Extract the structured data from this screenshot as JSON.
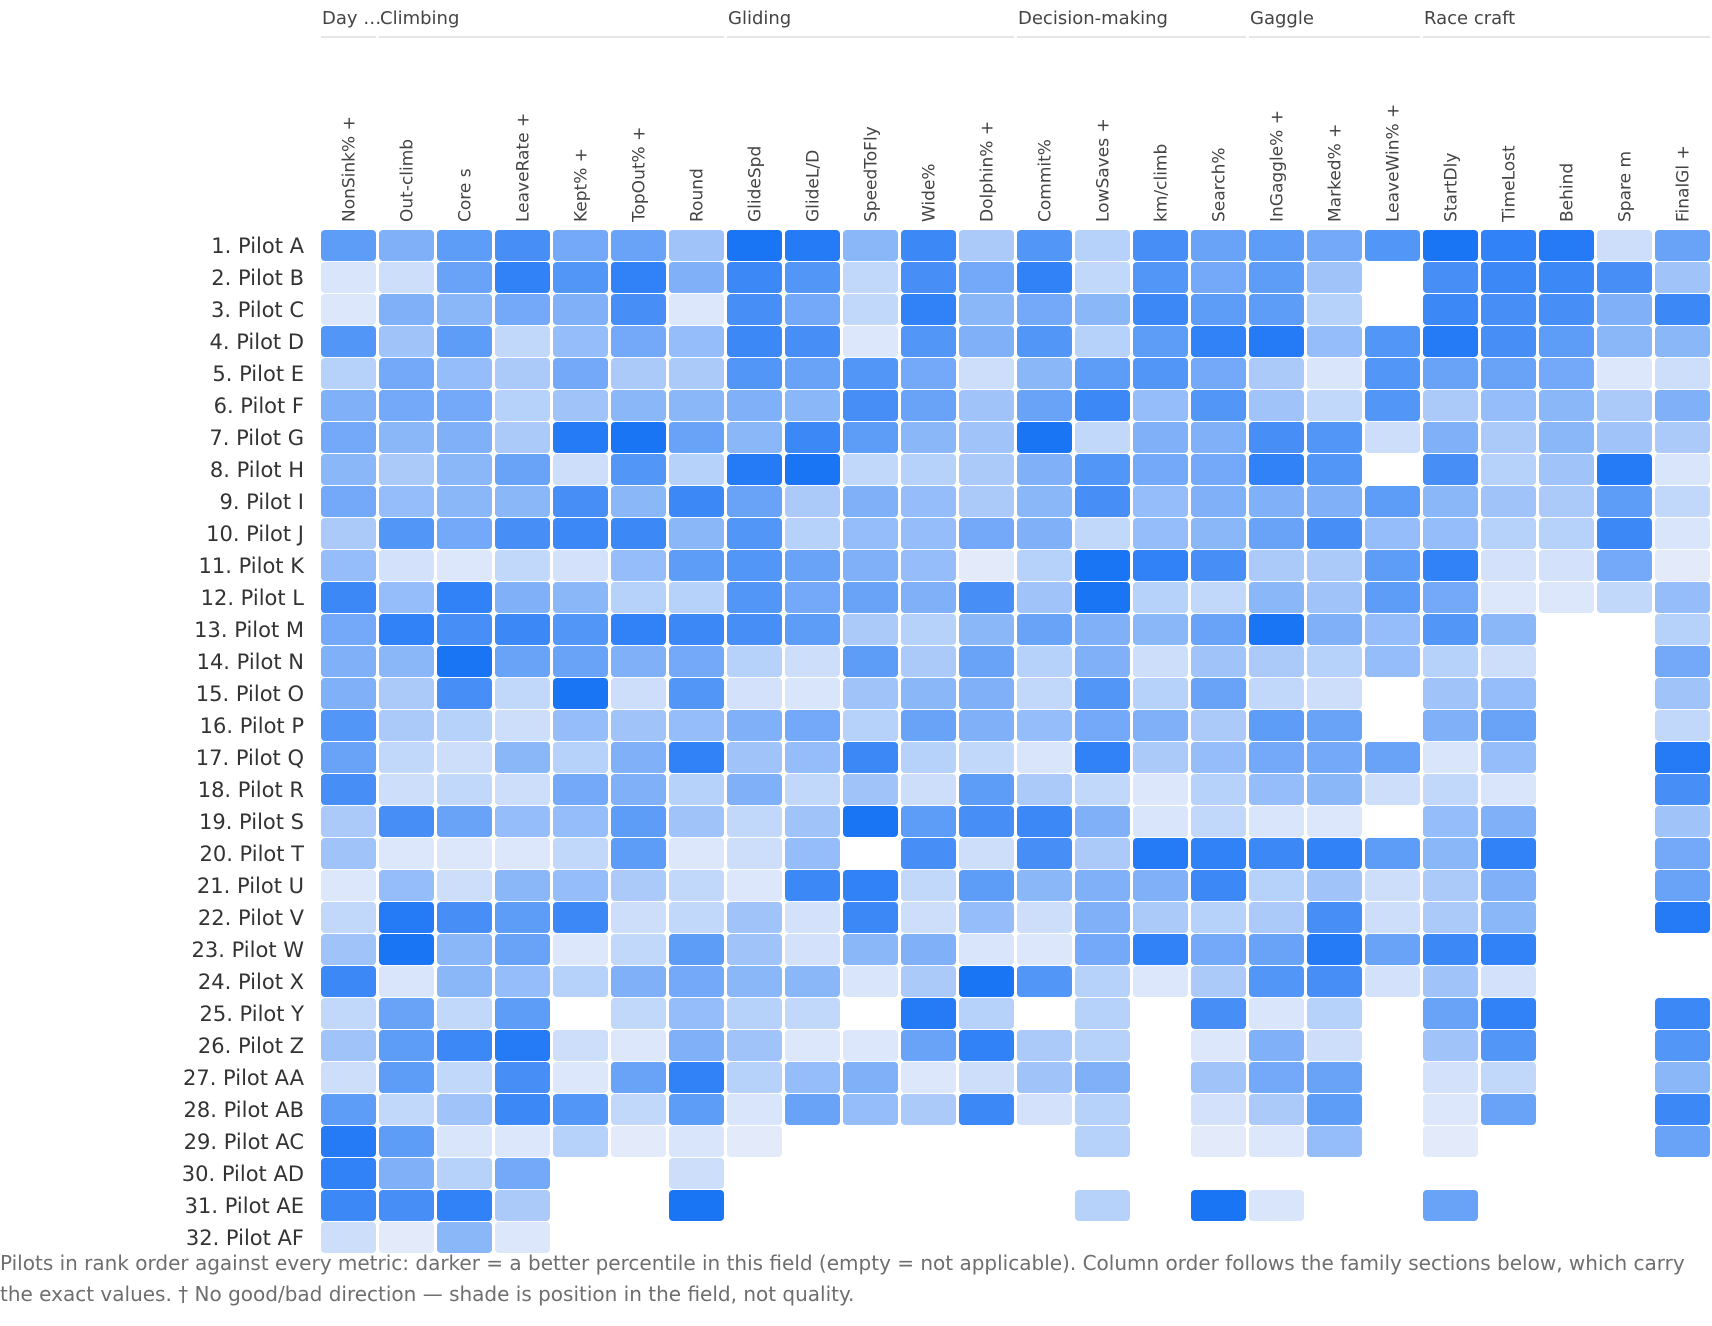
{
  "chart_data": {
    "type": "heatmap",
    "families": [
      {
        "name": "Day …",
        "columns": [
          "NonSink% +"
        ]
      },
      {
        "name": "Climbing",
        "columns": [
          "Out-climb",
          "Core s",
          "LeaveRate +",
          "Kept% +",
          "TopOut% +",
          "Round"
        ]
      },
      {
        "name": "Gliding",
        "columns": [
          "GlideSpd",
          "GlideL/D",
          "SpeedToFly",
          "Wide%",
          "Dolphin% +"
        ]
      },
      {
        "name": "Decision-making",
        "columns": [
          "Commit%",
          "LowSaves +",
          "km/climb",
          "Search%"
        ]
      },
      {
        "name": "Gaggle",
        "columns": [
          "InGaggle% +",
          "Marked% +",
          "LeaveWin% +"
        ]
      },
      {
        "name": "Race craft",
        "columns": [
          "StartDly",
          "TimeLost",
          "Behind",
          "Spare m",
          "FinalGl +"
        ]
      }
    ],
    "columns": [
      "NonSink% +",
      "Out-climb",
      "Core s",
      "LeaveRate +",
      "Kept% +",
      "TopOut% +",
      "Round",
      "GlideSpd",
      "GlideL/D",
      "SpeedToFly",
      "Wide%",
      "Dolphin% +",
      "Commit%",
      "LowSaves +",
      "km/climb",
      "Search%",
      "InGaggle% +",
      "Marked% +",
      "LeaveWin% +",
      "StartDly",
      "TimeLost",
      "Behind",
      "Spare m",
      "FinalGl +"
    ],
    "rows": [
      "1. Pilot A",
      "2. Pilot B",
      "3. Pilot C",
      "4. Pilot D",
      "5. Pilot E",
      "6. Pilot F",
      "7. Pilot G",
      "8. Pilot H",
      "9. Pilot I",
      "10. Pilot J",
      "11. Pilot K",
      "12. Pilot L",
      "13. Pilot M",
      "14. Pilot N",
      "15. Pilot O",
      "16. Pilot P",
      "17. Pilot Q",
      "18. Pilot R",
      "19. Pilot S",
      "20. Pilot T",
      "21. Pilot U",
      "22. Pilot V",
      "23. Pilot W",
      "24. Pilot X",
      "25. Pilot Y",
      "26. Pilot Z",
      "27. Pilot AA",
      "28. Pilot AB",
      "29. Pilot AC",
      "30. Pilot AD",
      "31. Pilot AE",
      "32. Pilot AF"
    ],
    "values": [
      [
        0.65,
        0.5,
        0.65,
        0.75,
        0.55,
        0.6,
        0.35,
        0.95,
        0.9,
        0.45,
        0.8,
        0.3,
        0.7,
        0.25,
        0.75,
        0.6,
        0.65,
        0.55,
        0.7,
        0.95,
        0.85,
        0.9,
        0.15,
        0.6
      ],
      [
        0.1,
        0.15,
        0.6,
        0.85,
        0.7,
        0.85,
        0.5,
        0.8,
        0.7,
        0.2,
        0.75,
        0.55,
        0.85,
        0.2,
        0.7,
        0.55,
        0.65,
        0.35,
        null,
        0.75,
        0.8,
        0.8,
        0.75,
        0.35
      ],
      [
        0.08,
        0.5,
        0.45,
        0.55,
        0.5,
        0.75,
        0.08,
        0.75,
        0.55,
        0.2,
        0.85,
        0.45,
        0.55,
        0.45,
        0.8,
        0.65,
        0.65,
        0.25,
        null,
        0.8,
        0.75,
        0.75,
        0.5,
        0.8
      ],
      [
        0.7,
        0.35,
        0.65,
        0.2,
        0.4,
        0.55,
        0.4,
        0.8,
        0.75,
        0.08,
        0.7,
        0.5,
        0.7,
        0.25,
        0.65,
        0.85,
        0.9,
        0.4,
        0.7,
        0.9,
        0.75,
        0.65,
        0.45,
        0.45
      ],
      [
        0.25,
        0.55,
        0.4,
        0.3,
        0.55,
        0.3,
        0.3,
        0.7,
        0.6,
        0.7,
        0.55,
        0.15,
        0.45,
        0.65,
        0.7,
        0.55,
        0.3,
        0.1,
        0.7,
        0.6,
        0.6,
        0.55,
        0.08,
        0.15
      ],
      [
        0.5,
        0.55,
        0.55,
        0.25,
        0.35,
        0.45,
        0.45,
        0.5,
        0.45,
        0.75,
        0.6,
        0.35,
        0.6,
        0.8,
        0.4,
        0.7,
        0.35,
        0.2,
        0.7,
        0.3,
        0.4,
        0.45,
        0.3,
        0.5
      ],
      [
        0.55,
        0.45,
        0.5,
        0.3,
        0.9,
        0.95,
        0.6,
        0.45,
        0.8,
        0.65,
        0.45,
        0.35,
        0.95,
        0.2,
        0.5,
        0.5,
        0.75,
        0.7,
        0.15,
        0.5,
        0.3,
        0.45,
        0.35,
        0.3
      ],
      [
        0.45,
        0.3,
        0.45,
        0.6,
        0.15,
        0.7,
        0.25,
        0.9,
        0.95,
        0.2,
        0.25,
        0.3,
        0.5,
        0.7,
        0.55,
        0.55,
        0.85,
        0.7,
        null,
        0.75,
        0.25,
        0.35,
        0.9,
        0.1
      ],
      [
        0.55,
        0.4,
        0.45,
        0.45,
        0.75,
        0.45,
        0.8,
        0.6,
        0.3,
        0.5,
        0.4,
        0.3,
        0.45,
        0.75,
        0.4,
        0.5,
        0.5,
        0.5,
        0.65,
        0.45,
        0.35,
        0.3,
        0.65,
        0.2
      ],
      [
        0.3,
        0.7,
        0.55,
        0.75,
        0.8,
        0.8,
        0.45,
        0.7,
        0.25,
        0.4,
        0.4,
        0.55,
        0.5,
        0.2,
        0.4,
        0.45,
        0.6,
        0.75,
        0.4,
        0.4,
        0.25,
        0.25,
        0.8,
        0.1
      ],
      [
        0.4,
        0.12,
        0.08,
        0.2,
        0.12,
        0.4,
        0.65,
        0.7,
        0.6,
        0.5,
        0.4,
        0.05,
        0.25,
        0.95,
        0.85,
        0.75,
        0.3,
        0.3,
        0.65,
        0.85,
        0.12,
        0.12,
        0.55,
        0.05
      ],
      [
        0.8,
        0.4,
        0.85,
        0.5,
        0.45,
        0.25,
        0.25,
        0.7,
        0.55,
        0.6,
        0.5,
        0.75,
        0.35,
        0.95,
        0.25,
        0.2,
        0.45,
        0.35,
        0.65,
        0.55,
        0.08,
        0.08,
        0.2,
        0.4
      ],
      [
        0.55,
        0.85,
        0.75,
        0.8,
        0.7,
        0.85,
        0.8,
        0.75,
        0.65,
        0.3,
        0.25,
        0.45,
        0.6,
        0.5,
        0.45,
        0.6,
        0.95,
        0.5,
        0.4,
        0.7,
        0.45,
        null,
        null,
        0.25
      ],
      [
        0.5,
        0.45,
        0.95,
        0.6,
        0.6,
        0.5,
        0.55,
        0.25,
        0.15,
        0.65,
        0.3,
        0.6,
        0.25,
        0.5,
        0.15,
        0.35,
        0.3,
        0.25,
        0.4,
        0.25,
        0.15,
        null,
        null,
        0.55
      ],
      [
        0.5,
        0.3,
        0.75,
        0.2,
        0.95,
        0.15,
        0.7,
        0.12,
        0.1,
        0.35,
        0.45,
        0.5,
        0.2,
        0.7,
        0.25,
        0.6,
        0.2,
        0.15,
        null,
        0.35,
        0.4,
        null,
        null,
        0.35
      ],
      [
        0.7,
        0.3,
        0.25,
        0.15,
        0.4,
        0.35,
        0.4,
        0.5,
        0.55,
        0.25,
        0.6,
        0.5,
        0.4,
        0.55,
        0.5,
        0.3,
        0.65,
        0.6,
        null,
        0.5,
        0.6,
        null,
        null,
        0.2
      ],
      [
        0.6,
        0.2,
        0.15,
        0.45,
        0.25,
        0.5,
        0.85,
        0.35,
        0.4,
        0.8,
        0.25,
        0.2,
        0.1,
        0.85,
        0.3,
        0.4,
        0.55,
        0.55,
        0.6,
        0.1,
        0.4,
        null,
        null,
        0.9
      ],
      [
        0.75,
        0.15,
        0.2,
        0.15,
        0.55,
        0.5,
        0.25,
        0.5,
        0.2,
        0.35,
        0.15,
        0.65,
        0.3,
        0.2,
        0.08,
        0.25,
        0.4,
        0.45,
        0.15,
        0.2,
        0.1,
        null,
        null,
        0.75
      ],
      [
        0.3,
        0.75,
        0.6,
        0.4,
        0.4,
        0.65,
        0.35,
        0.2,
        0.35,
        0.95,
        0.65,
        0.75,
        0.8,
        0.5,
        0.1,
        0.2,
        0.1,
        0.08,
        null,
        0.4,
        0.5,
        null,
        null,
        0.35
      ],
      [
        0.35,
        0.08,
        0.08,
        0.08,
        0.2,
        0.65,
        0.08,
        0.15,
        0.4,
        null,
        0.75,
        0.15,
        0.75,
        0.3,
        0.9,
        0.85,
        0.8,
        0.85,
        0.65,
        0.45,
        0.85,
        null,
        null,
        0.55
      ],
      [
        0.08,
        0.4,
        0.15,
        0.45,
        0.4,
        0.3,
        0.2,
        0.08,
        0.8,
        0.85,
        0.2,
        0.65,
        0.45,
        0.5,
        0.5,
        0.8,
        0.25,
        0.35,
        0.15,
        0.3,
        0.5,
        null,
        null,
        0.6
      ],
      [
        0.2,
        0.9,
        0.75,
        0.65,
        0.8,
        0.15,
        0.2,
        0.35,
        0.12,
        0.8,
        0.15,
        0.4,
        0.15,
        0.5,
        0.3,
        0.25,
        0.3,
        0.75,
        0.15,
        0.3,
        0.45,
        null,
        null,
        0.9
      ],
      [
        0.35,
        0.95,
        0.45,
        0.6,
        0.08,
        0.2,
        0.65,
        0.35,
        0.12,
        0.45,
        0.5,
        0.1,
        0.08,
        0.55,
        0.85,
        0.55,
        0.6,
        0.9,
        0.6,
        0.8,
        0.85,
        null,
        null,
        null
      ],
      [
        0.8,
        0.1,
        0.45,
        0.4,
        0.25,
        0.5,
        0.55,
        0.45,
        0.45,
        0.1,
        0.3,
        0.95,
        0.7,
        0.25,
        0.08,
        0.3,
        0.7,
        0.75,
        0.12,
        0.35,
        0.12,
        null,
        null,
        null
      ],
      [
        0.2,
        0.6,
        0.2,
        0.65,
        null,
        0.2,
        0.4,
        0.25,
        0.2,
        null,
        0.9,
        0.25,
        null,
        0.25,
        null,
        0.75,
        0.1,
        0.25,
        null,
        0.6,
        0.85,
        null,
        null,
        0.8
      ],
      [
        0.35,
        0.65,
        0.8,
        0.9,
        0.15,
        0.08,
        0.5,
        0.35,
        0.08,
        0.08,
        0.6,
        0.85,
        0.3,
        0.25,
        null,
        0.08,
        0.5,
        0.15,
        null,
        0.35,
        0.7,
        null,
        null,
        0.7
      ],
      [
        0.15,
        0.65,
        0.2,
        0.75,
        0.08,
        0.6,
        0.85,
        0.25,
        0.4,
        0.5,
        0.08,
        0.15,
        0.35,
        0.5,
        null,
        0.35,
        0.55,
        0.6,
        null,
        0.12,
        0.2,
        null,
        null,
        0.45
      ],
      [
        0.65,
        0.2,
        0.35,
        0.8,
        0.7,
        0.2,
        0.65,
        0.1,
        0.6,
        0.4,
        0.3,
        0.8,
        0.12,
        0.25,
        null,
        0.12,
        0.3,
        0.65,
        null,
        0.08,
        0.6,
        null,
        null,
        0.8
      ],
      [
        0.9,
        0.65,
        0.1,
        0.08,
        0.25,
        0.05,
        0.1,
        0.05,
        null,
        null,
        null,
        null,
        null,
        0.25,
        null,
        0.05,
        0.08,
        0.4,
        null,
        0.05,
        null,
        null,
        null,
        0.6
      ],
      [
        0.85,
        0.5,
        0.25,
        0.55,
        null,
        null,
        0.15,
        null,
        null,
        null,
        null,
        null,
        null,
        null,
        null,
        null,
        null,
        null,
        null,
        null,
        null,
        null,
        null,
        null
      ],
      [
        0.8,
        0.75,
        0.85,
        0.3,
        null,
        null,
        0.95,
        null,
        null,
        null,
        null,
        null,
        null,
        0.25,
        null,
        0.95,
        0.1,
        null,
        null,
        0.6,
        null,
        null,
        null,
        null
      ],
      [
        0.15,
        0.05,
        0.45,
        0.08,
        null,
        null,
        null,
        null,
        null,
        null,
        null,
        null,
        null,
        null,
        null,
        null,
        null,
        null,
        null,
        null,
        null,
        null,
        null,
        null
      ]
    ],
    "color_low": "#eef2fb",
    "color_high": "#0f6ef5",
    "caption": "Pilots in rank order against every metric: darker = a better percentile in this field (empty = not applicable). Column order follows the family sections below, which carry the exact values. † No good/bad direction — shade is position in the field, not quality."
  }
}
